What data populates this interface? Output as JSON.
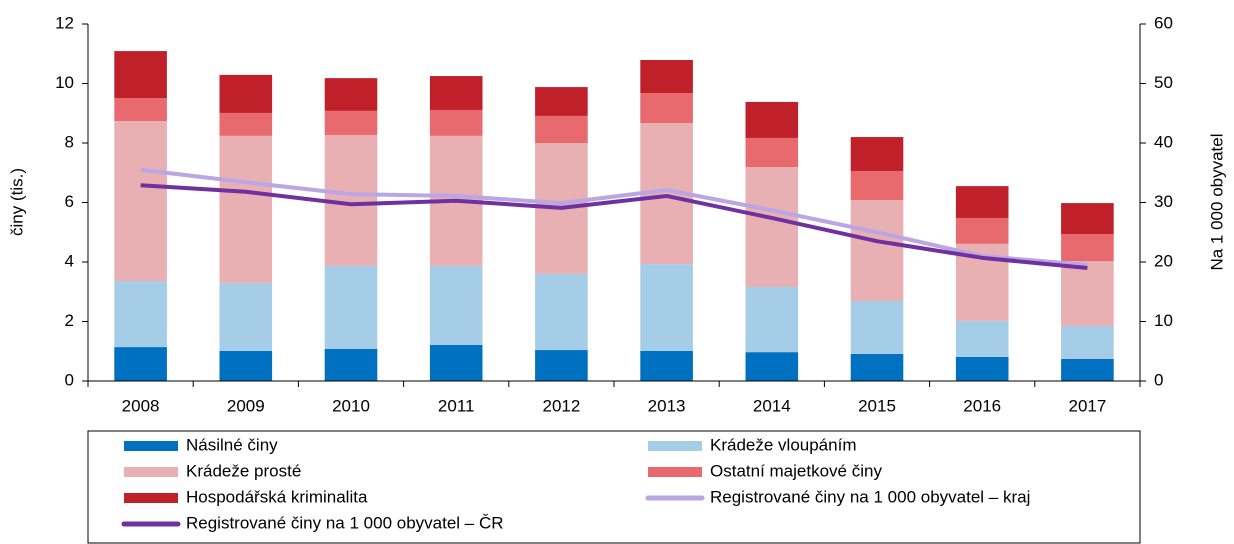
{
  "chart_data": {
    "type": "bar",
    "stacked": true,
    "categories": [
      "2008",
      "2009",
      "2010",
      "2011",
      "2012",
      "2013",
      "2014",
      "2015",
      "2016",
      "2017"
    ],
    "ylabel": "činy (tis.)",
    "y2label": "Na 1 000 obyvatel",
    "ylim": [
      0,
      12
    ],
    "yticks": [
      0,
      2,
      4,
      6,
      8,
      10,
      12
    ],
    "y2lim": [
      0,
      60
    ],
    "y2ticks": [
      0,
      10,
      20,
      30,
      40,
      50,
      60
    ],
    "series": [
      {
        "name": "Násilné činy",
        "color": "#0070c0",
        "values": [
          1.14,
          1.01,
          1.08,
          1.21,
          1.04,
          1.01,
          0.97,
          0.91,
          0.81,
          0.74
        ]
      },
      {
        "name": "Krádeže vloupáním",
        "color": "#a6cde8",
        "values": [
          2.22,
          2.28,
          2.79,
          2.66,
          2.56,
          2.92,
          2.19,
          1.78,
          1.21,
          1.11
        ]
      },
      {
        "name": "Krádeže prosté",
        "color": "#e8b0b2",
        "values": [
          5.38,
          4.95,
          4.4,
          4.37,
          4.4,
          4.74,
          4.03,
          3.39,
          2.59,
          2.18
        ]
      },
      {
        "name": "Ostatní majetkové činy",
        "color": "#e86a6e",
        "values": [
          0.77,
          0.77,
          0.81,
          0.87,
          0.91,
          1.01,
          0.98,
          0.98,
          0.87,
          0.91
        ]
      },
      {
        "name": "Hospodářská kriminalita",
        "color": "#c0202a",
        "values": [
          1.58,
          1.28,
          1.1,
          1.14,
          0.97,
          1.11,
          1.21,
          1.14,
          1.07,
          1.04
        ]
      },
      {
        "name": "Registrované činy na 1 000 obyvatel – kraj",
        "type": "line",
        "axis": "y2",
        "color": "#b9a6e2",
        "values": [
          35.5,
          33.4,
          31.4,
          31.1,
          29.9,
          32.1,
          28.7,
          25.0,
          21.0,
          19.5
        ]
      },
      {
        "name": "Registrované činy na 1 000 obyvatel – ČR",
        "type": "line",
        "axis": "y2",
        "color": "#7030a0",
        "values": [
          32.9,
          31.8,
          29.7,
          30.3,
          29.1,
          31.1,
          27.4,
          23.5,
          20.7,
          19.0
        ]
      }
    ]
  }
}
